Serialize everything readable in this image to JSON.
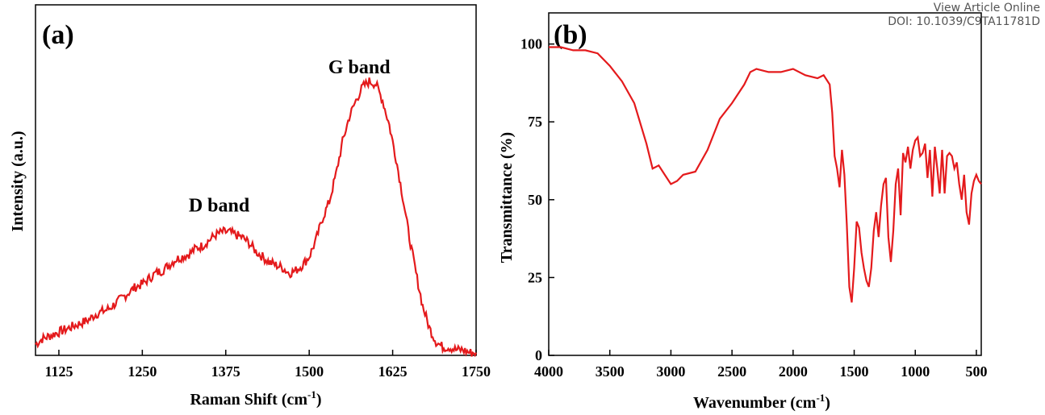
{
  "watermark": {
    "line1": "View Article Online",
    "line2": "DOI: 10.1039/C9TA11781D"
  },
  "chart_data": [
    {
      "type": "line",
      "panel_label": "(a)",
      "xlabel": "Raman Shift (cm",
      "xlabel_sup": "-1",
      "xlabel_close": ")",
      "ylabel": "Intensity (a.u.)",
      "xlim": [
        1090,
        1750
      ],
      "ylim": [
        0,
        1
      ],
      "x_ticks": [
        1125,
        1250,
        1375,
        1500,
        1625,
        1750
      ],
      "y_ticks_shown": false,
      "annotations": [
        {
          "text": "D band",
          "x": 1365,
          "y": 0.525
        },
        {
          "text": "G band",
          "x": 1575,
          "y": 1.03
        }
      ],
      "line_color": "#e41a1c",
      "series": [
        {
          "x": [
            1090,
            1100,
            1110,
            1120,
            1130,
            1140,
            1150,
            1160,
            1170,
            1180,
            1190,
            1200,
            1210,
            1220,
            1230,
            1240,
            1250,
            1260,
            1270,
            1280,
            1290,
            1300,
            1310,
            1320,
            1330,
            1340,
            1350,
            1360,
            1370,
            1380,
            1390,
            1400,
            1410,
            1420,
            1430,
            1440,
            1450,
            1460,
            1470,
            1480,
            1490,
            1500,
            1510,
            1520,
            1530,
            1540,
            1550,
            1560,
            1570,
            1580,
            1590,
            1600,
            1610,
            1620,
            1630,
            1640,
            1650,
            1660,
            1670,
            1680,
            1690,
            1700,
            1710,
            1720,
            1730,
            1740,
            1750
          ],
          "y": [
            0.04,
            0.06,
            0.07,
            0.08,
            0.09,
            0.1,
            0.11,
            0.12,
            0.13,
            0.15,
            0.16,
            0.17,
            0.19,
            0.21,
            0.23,
            0.25,
            0.26,
            0.28,
            0.3,
            0.31,
            0.33,
            0.35,
            0.36,
            0.37,
            0.39,
            0.4,
            0.42,
            0.44,
            0.45,
            0.45,
            0.44,
            0.43,
            0.41,
            0.38,
            0.36,
            0.34,
            0.33,
            0.32,
            0.3,
            0.31,
            0.33,
            0.36,
            0.42,
            0.5,
            0.56,
            0.66,
            0.78,
            0.87,
            0.93,
            0.98,
            1.0,
            0.99,
            0.93,
            0.84,
            0.72,
            0.58,
            0.43,
            0.3,
            0.18,
            0.1,
            0.05,
            0.03,
            0.03,
            0.02,
            0.02,
            0.01,
            0.01
          ]
        }
      ]
    },
    {
      "type": "line",
      "panel_label": "(b)",
      "xlabel": "Wavenumber (cm",
      "xlabel_sup": "-1",
      "xlabel_close": ")",
      "ylabel": "Transmittance (%)",
      "xlim": [
        4000,
        460
      ],
      "ylim": [
        0,
        110
      ],
      "x_ticks": [
        4000,
        3500,
        3000,
        2500,
        2000,
        1500,
        1000,
        500
      ],
      "y_ticks": [
        0,
        25,
        50,
        75,
        100
      ],
      "line_color": "#e41a1c",
      "series": [
        {
          "x": [
            4000,
            3900,
            3800,
            3700,
            3600,
            3500,
            3400,
            3300,
            3200,
            3150,
            3100,
            3050,
            3000,
            2950,
            2900,
            2800,
            2700,
            2600,
            2500,
            2400,
            2350,
            2300,
            2200,
            2100,
            2000,
            1900,
            1800,
            1750,
            1700,
            1680,
            1660,
            1640,
            1620,
            1600,
            1580,
            1560,
            1540,
            1520,
            1500,
            1480,
            1460,
            1440,
            1420,
            1400,
            1380,
            1360,
            1340,
            1320,
            1300,
            1280,
            1260,
            1240,
            1220,
            1200,
            1180,
            1160,
            1140,
            1120,
            1100,
            1080,
            1060,
            1040,
            1020,
            1000,
            980,
            960,
            940,
            920,
            900,
            880,
            860,
            840,
            820,
            800,
            780,
            760,
            740,
            720,
            700,
            680,
            660,
            640,
            620,
            600,
            580,
            560,
            540,
            520,
            500,
            480,
            460
          ],
          "y": [
            99,
            99,
            98,
            98,
            97,
            93,
            88,
            81,
            68,
            60,
            61,
            58,
            55,
            56,
            58,
            59,
            66,
            76,
            81,
            87,
            91,
            92,
            91,
            91,
            92,
            90,
            89,
            90,
            87,
            78,
            64,
            60,
            54,
            66,
            58,
            42,
            22,
            17,
            28,
            43,
            41,
            33,
            28,
            24,
            22,
            28,
            40,
            46,
            38,
            48,
            55,
            57,
            38,
            30,
            40,
            55,
            60,
            45,
            65,
            62,
            67,
            60,
            66,
            69,
            70,
            64,
            65,
            68,
            57,
            66,
            51,
            67,
            60,
            52,
            66,
            52,
            64,
            65,
            64,
            60,
            62,
            55,
            50,
            58,
            46,
            42,
            52,
            56,
            58,
            56,
            55
          ]
        }
      ]
    }
  ]
}
